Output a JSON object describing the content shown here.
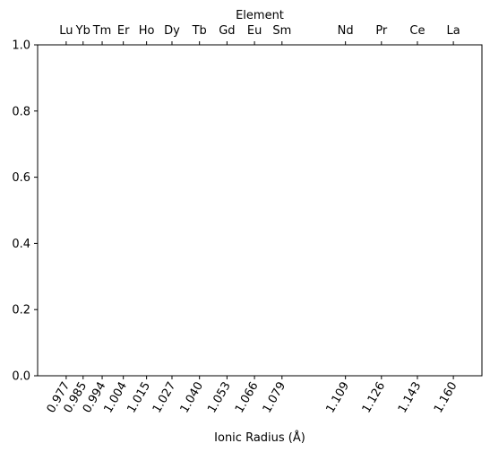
{
  "chart_data": {
    "type": "scatter",
    "title": "",
    "xlabel": "Ionic Radius (Å)",
    "ylabel": "",
    "top_axis_label": "Element",
    "xlim": [
      0.9635,
      1.1735
    ],
    "ylim": [
      0.0,
      1.0
    ],
    "y_ticks": [
      0.0,
      0.2,
      0.4,
      0.6,
      0.8,
      1.0
    ],
    "y_tick_labels": [
      "0.0",
      "0.2",
      "0.4",
      "0.6",
      "0.8",
      "1.0"
    ],
    "x_ticks": [
      0.977,
      0.985,
      0.994,
      1.004,
      1.015,
      1.027,
      1.04,
      1.053,
      1.066,
      1.079,
      1.109,
      1.126,
      1.143,
      1.16
    ],
    "x_tick_labels": [
      "0.977",
      "0.985",
      "0.994",
      "1.004",
      "1.015",
      "1.027",
      "1.040",
      "1.053",
      "1.066",
      "1.079",
      "1.109",
      "1.126",
      "1.143",
      "1.160"
    ],
    "top_tick_labels": [
      "Lu",
      "Yb",
      "Tm",
      "Er",
      "Ho",
      "Dy",
      "Tb",
      "Gd",
      "Eu",
      "Sm",
      "Nd",
      "Pr",
      "Ce",
      "La"
    ],
    "x_tick_rotation_deg": 60,
    "grid": false,
    "legend": "none",
    "series": []
  }
}
